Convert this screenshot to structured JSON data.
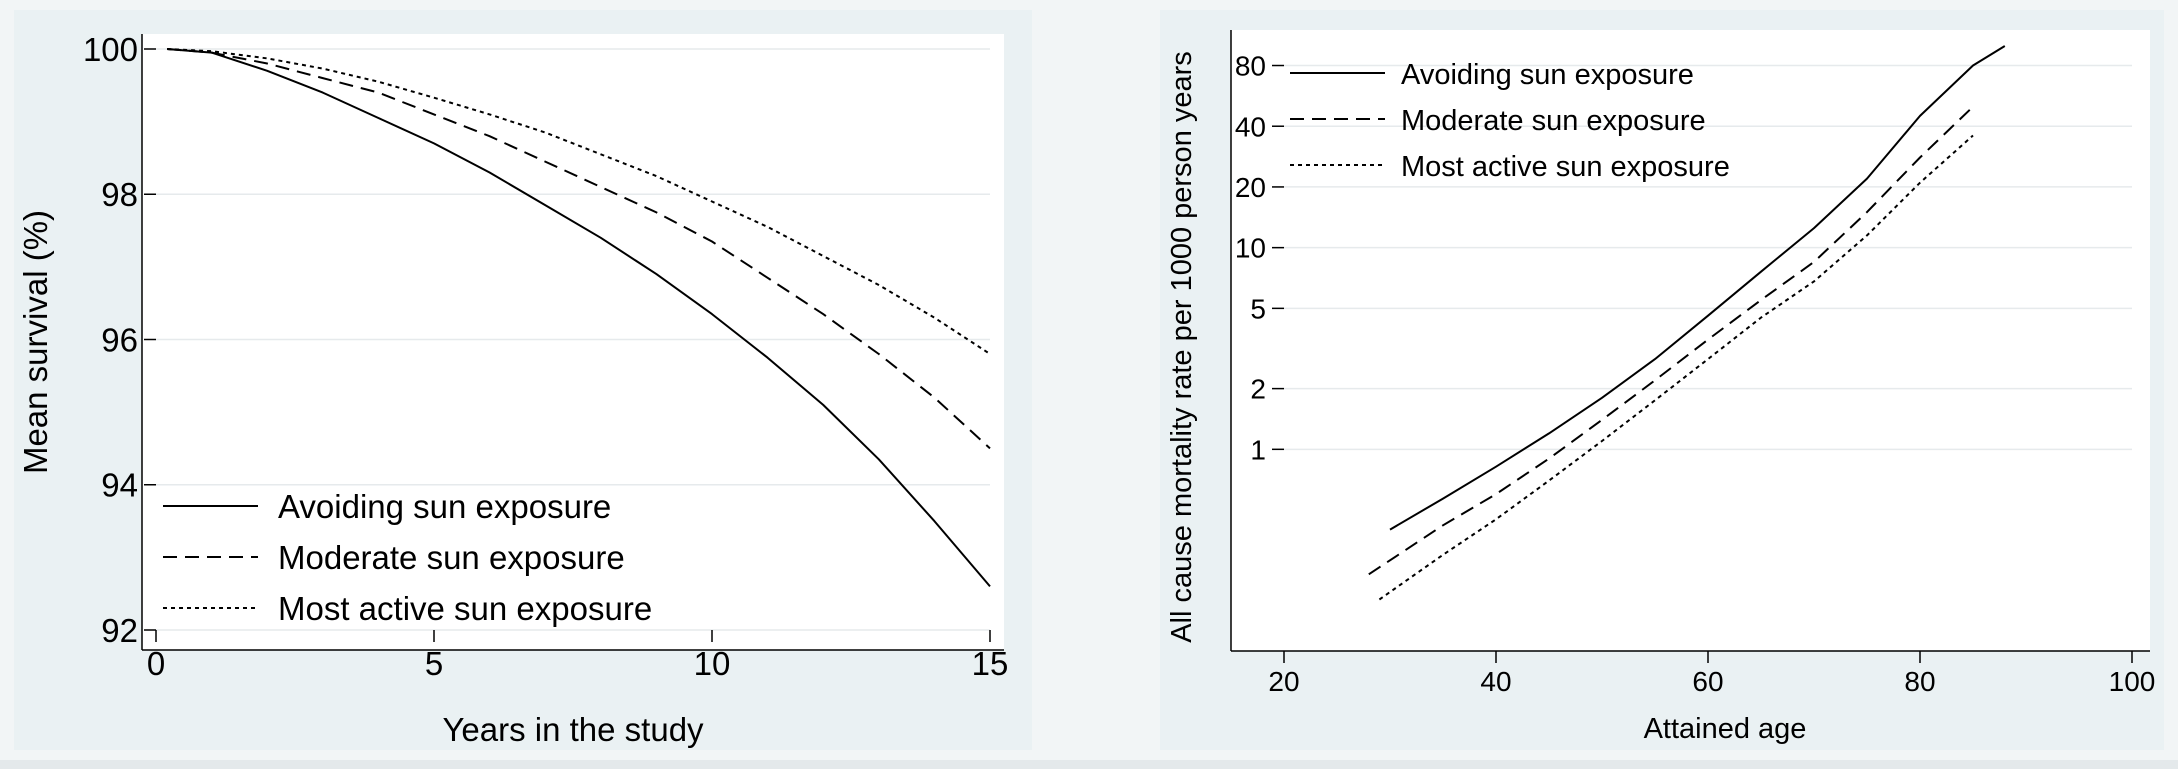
{
  "chart_data": [
    {
      "type": "line",
      "title": "",
      "xlabel": "Years in the study",
      "ylabel": "Mean survival (%)",
      "xlim": [
        0,
        15
      ],
      "ylim": [
        92,
        100
      ],
      "x_ticks": [
        0,
        5,
        10,
        15
      ],
      "y_ticks": [
        92,
        94,
        96,
        98,
        100
      ],
      "grid": "horizontal",
      "legend_position": "bottom-left",
      "series": [
        {
          "name": "Avoiding sun exposure",
          "style": "solid",
          "points": [
            [
              0.2,
              100.0
            ],
            [
              1,
              99.95
            ],
            [
              2,
              99.7
            ],
            [
              3,
              99.4
            ],
            [
              4,
              99.05
            ],
            [
              5,
              98.7
            ],
            [
              6,
              98.3
            ],
            [
              7,
              97.85
            ],
            [
              8,
              97.4
            ],
            [
              9,
              96.9
            ],
            [
              10,
              96.35
            ],
            [
              11,
              95.75
            ],
            [
              12,
              95.1
            ],
            [
              13,
              94.35
            ],
            [
              14,
              93.5
            ],
            [
              15,
              92.6
            ]
          ]
        },
        {
          "name": "Moderate sun exposure",
          "style": "dashed",
          "points": [
            [
              0.2,
              100.0
            ],
            [
              1,
              99.95
            ],
            [
              2,
              99.8
            ],
            [
              3,
              99.6
            ],
            [
              4,
              99.4
            ],
            [
              5,
              99.1
            ],
            [
              6,
              98.8
            ],
            [
              7,
              98.45
            ],
            [
              8,
              98.1
            ],
            [
              9,
              97.75
            ],
            [
              10,
              97.35
            ],
            [
              11,
              96.85
            ],
            [
              12,
              96.35
            ],
            [
              13,
              95.8
            ],
            [
              14,
              95.2
            ],
            [
              15,
              94.5
            ]
          ]
        },
        {
          "name": "Most active sun exposure",
          "style": "dotted",
          "points": [
            [
              0.2,
              100.0
            ],
            [
              1,
              99.97
            ],
            [
              2,
              99.87
            ],
            [
              3,
              99.73
            ],
            [
              4,
              99.55
            ],
            [
              5,
              99.33
            ],
            [
              6,
              99.1
            ],
            [
              7,
              98.85
            ],
            [
              8,
              98.55
            ],
            [
              9,
              98.25
            ],
            [
              10,
              97.9
            ],
            [
              11,
              97.55
            ],
            [
              12,
              97.15
            ],
            [
              13,
              96.75
            ],
            [
              14,
              96.3
            ],
            [
              15,
              95.8
            ]
          ]
        }
      ]
    },
    {
      "type": "line",
      "title": "",
      "xlabel": "Attained age",
      "ylabel": "All cause mortality rate per 1000 person years",
      "xlim": [
        20,
        100
      ],
      "x_ticks": [
        20,
        40,
        60,
        80,
        100
      ],
      "y_scale": "log",
      "ylim": [
        0.1,
        120
      ],
      "y_ticks": [
        1,
        2,
        5,
        10,
        20,
        40,
        80
      ],
      "grid": "horizontal",
      "legend_position": "top-left",
      "series": [
        {
          "name": "Avoiding sun exposure",
          "style": "solid",
          "points": [
            [
              30,
              0.4
            ],
            [
              35,
              0.57
            ],
            [
              40,
              0.82
            ],
            [
              45,
              1.2
            ],
            [
              50,
              1.8
            ],
            [
              55,
              2.8
            ],
            [
              60,
              4.6
            ],
            [
              65,
              7.6
            ],
            [
              70,
              12.5
            ],
            [
              75,
              22
            ],
            [
              80,
              45
            ],
            [
              85,
              80
            ],
            [
              88,
              100
            ]
          ]
        },
        {
          "name": "Moderate sun exposure",
          "style": "dashed",
          "points": [
            [
              28,
              0.24
            ],
            [
              35,
              0.42
            ],
            [
              40,
              0.6
            ],
            [
              45,
              0.9
            ],
            [
              50,
              1.4
            ],
            [
              55,
              2.2
            ],
            [
              60,
              3.5
            ],
            [
              65,
              5.5
            ],
            [
              70,
              8.5
            ],
            [
              75,
              15
            ],
            [
              80,
              28
            ],
            [
              85,
              50
            ]
          ]
        },
        {
          "name": "Most active sun exposure",
          "style": "dotted",
          "points": [
            [
              29,
              0.18
            ],
            [
              35,
              0.3
            ],
            [
              40,
              0.45
            ],
            [
              45,
              0.7
            ],
            [
              50,
              1.1
            ],
            [
              55,
              1.75
            ],
            [
              60,
              2.8
            ],
            [
              65,
              4.5
            ],
            [
              70,
              6.8
            ],
            [
              75,
              11.5
            ],
            [
              80,
              21
            ],
            [
              85,
              36
            ]
          ]
        }
      ]
    }
  ]
}
